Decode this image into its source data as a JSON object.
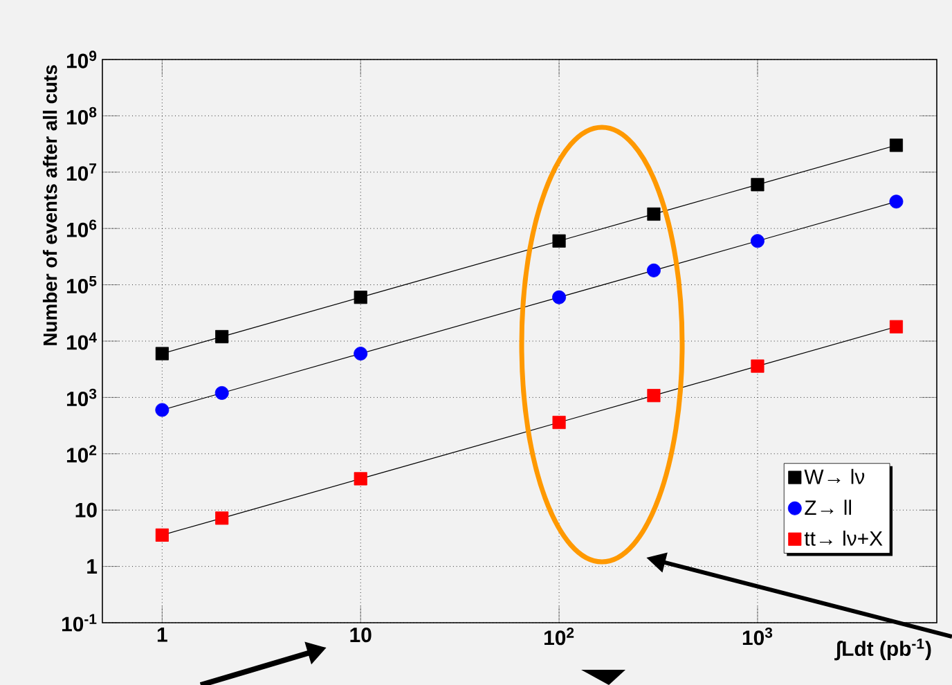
{
  "chart_data": {
    "type": "line",
    "ylabel": "Number of events after all cuts",
    "xlabel": "∫Ldt (pb$^{-1}$)",
    "x": [
      1,
      2,
      10,
      100,
      300,
      1000,
      5000
    ],
    "series": [
      {
        "name": "W→ lν",
        "color": "#000000",
        "marker": "square",
        "values": [
          6000,
          12000,
          60000,
          600000,
          1800000,
          6000000,
          30000000
        ]
      },
      {
        "name": "Z→ ll",
        "color": "#0000ff",
        "marker": "circle",
        "values": [
          600,
          1200,
          6000,
          60000,
          180000,
          600000,
          3000000
        ]
      },
      {
        "name": "tt→ lν+X",
        "color": "#ff0000",
        "marker": "square",
        "values": [
          3.6,
          7.2,
          36,
          360,
          1080,
          3600,
          18000
        ]
      }
    ],
    "log": "xy",
    "grid": true,
    "legend": "bottom right",
    "xlim": [
      0.5,
      8000
    ],
    "ylim": [
      0.1,
      1000000000
    ],
    "xticks": [
      1,
      10,
      {
        "value": 100,
        "label": "10$^{2}$"
      },
      {
        "value": 1000,
        "label": "10$^{3}$"
      }
    ],
    "yticks": [
      {
        "value": 0.1,
        "label": "10$^{-1}$"
      },
      1,
      10,
      {
        "value": 100,
        "label": "10$^{2}$"
      },
      {
        "value": 1000,
        "label": "10$^{3}$"
      },
      {
        "value": 10000,
        "label": "10$^{4}$"
      },
      {
        "value": 100000,
        "label": "10$^{5}$"
      },
      {
        "value": 1000000,
        "label": "10$^{6}$"
      },
      {
        "value": 10000000,
        "label": "10$^{7}$"
      },
      {
        "value": 100000000,
        "label": "10$^{8}$"
      },
      {
        "value": 1000000000,
        "label": "10$^{9}$"
      }
    ]
  }
}
